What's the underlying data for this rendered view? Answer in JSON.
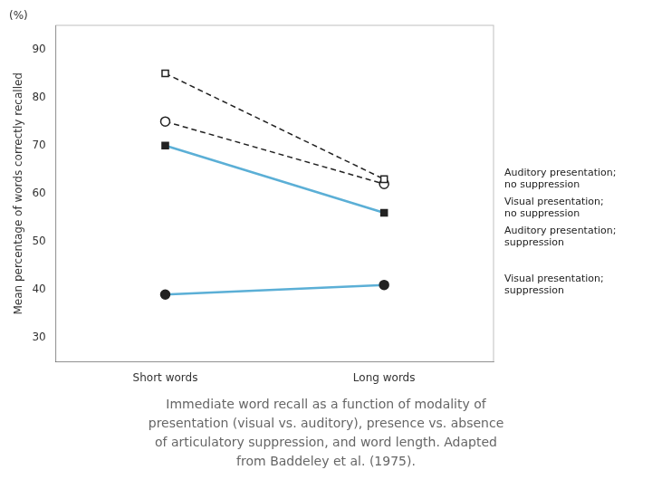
{
  "chart_data": {
    "type": "line",
    "categories": [
      "Short words",
      "Long words"
    ],
    "series": [
      {
        "name": "Auditory presentation;\nno suppression",
        "color": "#222222",
        "line_style": "dashed",
        "marker": "square",
        "values": [
          85,
          63
        ]
      },
      {
        "name": "Visual presentation;\nno suppression",
        "color": "#222222",
        "line_style": "dashed",
        "marker": "circle",
        "values": [
          75,
          62
        ]
      },
      {
        "name": "Auditory presentation;\nsuppression",
        "color": "#5bafd6",
        "line_style": "solid",
        "marker": "square",
        "values": [
          70,
          56
        ]
      },
      {
        "name": "Visual presentation;\nsuppression",
        "color": "#5bafd6",
        "line_style": "solid",
        "marker": "circle",
        "values": [
          39,
          41
        ]
      }
    ],
    "y_label": "Mean percentage of words correctly recalled",
    "annotations": [
      "(%)"
    ],
    "caption": [
      "Immediate word recall as a function of modality of",
      "presentation (visual vs. auditory), presence vs. absence",
      "of articulatory suppression, and word length. Adapted",
      "from Baddeley et al. (1975)."
    ],
    "ylim": [
      25,
      95
    ],
    "yticks": [
      30,
      40,
      50,
      60,
      70,
      80,
      90
    ],
    "grid": false
  }
}
